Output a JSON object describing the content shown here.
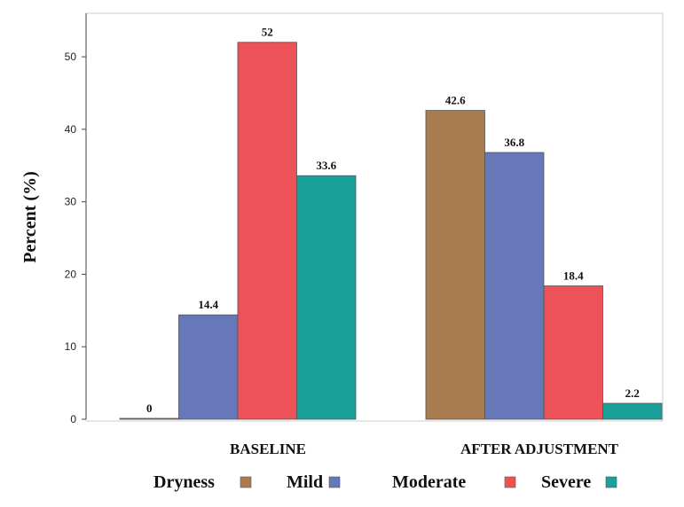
{
  "chart_data": {
    "type": "bar",
    "categories": [
      "BASELINE",
      "AFTER ADJUSTMENT"
    ],
    "series": [
      {
        "name": "Dryness",
        "color": "#a97c50",
        "values": [
          0,
          42.6
        ],
        "labels": [
          "0",
          "42.6"
        ]
      },
      {
        "name": "Mild",
        "color": "#6678b8",
        "values": [
          14.4,
          36.8
        ],
        "labels": [
          "14.4",
          "36.8"
        ]
      },
      {
        "name": "Moderate",
        "color": "#ec5257",
        "values": [
          52,
          18.4
        ],
        "labels": [
          "52",
          "18.4"
        ]
      },
      {
        "name": "Severe",
        "color": "#1aa199",
        "values": [
          33.6,
          2.2
        ],
        "labels": [
          "33.6",
          "2.2"
        ]
      }
    ],
    "ylabel": "Percent (%)",
    "xlabel": "",
    "ylim": [
      0,
      56
    ],
    "yticks": [
      "0",
      "10",
      "20",
      "30",
      "40",
      "50"
    ],
    "grid": false,
    "legend_position": "bottom"
  }
}
